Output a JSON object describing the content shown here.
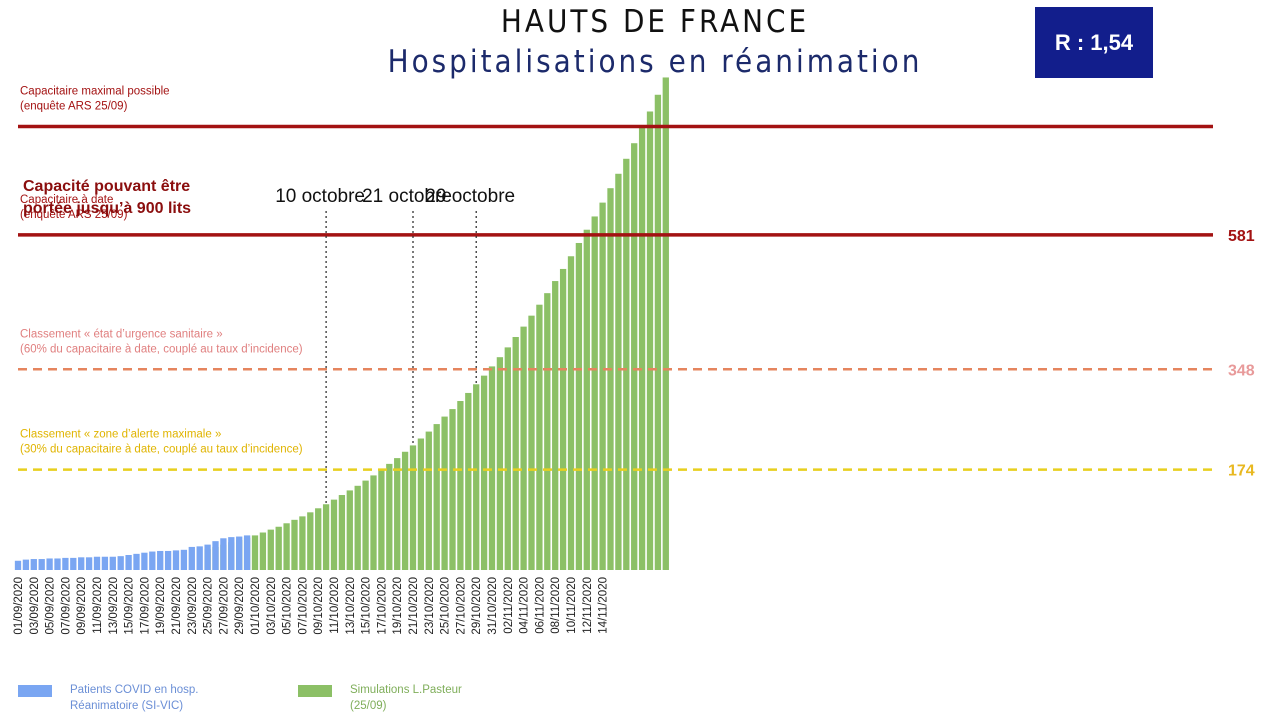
{
  "title": "HAUTS DE FRANCE",
  "subtitle": "Hospitalisations en réanimation",
  "r_badge": "R : 1,54",
  "colors": {
    "observed": "#7aa6f2",
    "simulated": "#8cc066",
    "capacity": "#a31212",
    "urgence": "#e5855e",
    "alerte": "#e8cf1e",
    "navy": "#121e8c"
  },
  "legend": [
    {
      "label_line1": "Patients COVID en hosp.",
      "label_line2": "Réanimatoire (SI-VIC)",
      "color": "#7aa6f2"
    },
    {
      "label_line1": "Simulations L.Pasteur",
      "label_line2": "(25/09)",
      "color": "#8cc066"
    }
  ],
  "chart_data": {
    "type": "bar",
    "title": "Hospitalisations en réanimation",
    "xlabel": "",
    "ylabel": "",
    "ylim": [
      0,
      860
    ],
    "tick_labels": [
      "01/09/2020",
      "03/09/2020",
      "05/09/2020",
      "07/09/2020",
      "09/09/2020",
      "11/09/2020",
      "13/09/2020",
      "15/09/2020",
      "17/09/2020",
      "19/09/2020",
      "21/09/2020",
      "23/09/2020",
      "25/09/2020",
      "27/09/2020",
      "29/09/2020",
      "01/10/2020",
      "03/10/2020",
      "05/10/2020",
      "07/10/2020",
      "09/10/2020",
      "11/10/2020",
      "13/10/2020",
      "15/10/2020",
      "17/10/2020",
      "19/10/2020",
      "21/10/2020",
      "23/10/2020",
      "25/10/2020",
      "27/10/2020",
      "29/10/2020",
      "31/10/2020",
      "02/11/2020",
      "04/11/2020",
      "06/11/2020",
      "08/11/2020",
      "10/11/2020",
      "12/11/2020",
      "14/11/2020"
    ],
    "series": [
      {
        "name": "Patients COVID en hosp. Réanimatoire (SI-VIC)",
        "start_date": "01/09/2020",
        "values": [
          16,
          18,
          19,
          19,
          20,
          20,
          21,
          21,
          22,
          22,
          23,
          23,
          23,
          24,
          26,
          28,
          30,
          32,
          33,
          33,
          34,
          35,
          40,
          41,
          44,
          50,
          55,
          57,
          58,
          60
        ]
      },
      {
        "name": "Simulations L.Pasteur (25/09)",
        "start_date": "25/09/2020",
        "values": [
          36,
          40,
          44,
          48,
          52,
          56,
          60,
          65,
          70,
          75,
          81,
          87,
          93,
          100,
          107,
          114,
          122,
          130,
          138,
          146,
          155,
          164,
          174,
          184,
          194,
          205,
          216,
          228,
          240,
          253,
          266,
          279,
          293,
          307,
          322,
          337,
          353,
          369,
          386,
          404,
          422,
          441,
          460,
          480,
          501,
          522,
          544,
          567,
          590,
          613,
          637,
          662,
          687,
          713,
          740,
          767,
          795,
          824,
          854
        ]
      }
    ],
    "reference_lines": [
      {
        "name": "capacite_max",
        "label": "Capacitaire maximal possible",
        "sublabel": "(enquête ARS 25/09)",
        "value": 769,
        "style": "solid",
        "color": "#a31212",
        "value_label": ""
      },
      {
        "name": "capacite_date",
        "label": "Capacitaire à date",
        "sublabel": "(enquête ARS 25/09)",
        "value": 581,
        "style": "solid",
        "color": "#a31212",
        "value_label": "581"
      },
      {
        "name": "urgence",
        "label": "Classement « état d’urgence sanitaire »",
        "sublabel": "(60% du capacitaire à date, couplé au taux d’incidence)",
        "value": 348,
        "style": "dashed",
        "color": "#e5855e",
        "value_label": "348"
      },
      {
        "name": "alerte",
        "label": "Classement « zone d’alerte maximale »",
        "sublabel": "(30% du capacitaire à date, couplé au taux d’incidence)",
        "value": 174,
        "style": "dashed",
        "color": "#e8cf1e",
        "value_label": "174"
      }
    ],
    "capacity_note": [
      "Capacité pouvant être",
      "portée jusqu’à 900 lits"
    ],
    "date_markers": [
      {
        "label": "10 octobre",
        "date": "10/10/2020"
      },
      {
        "label": "21 octobre",
        "date": "21/10/2020"
      },
      {
        "label": "29 octobre",
        "date": "29/10/2020"
      }
    ]
  }
}
